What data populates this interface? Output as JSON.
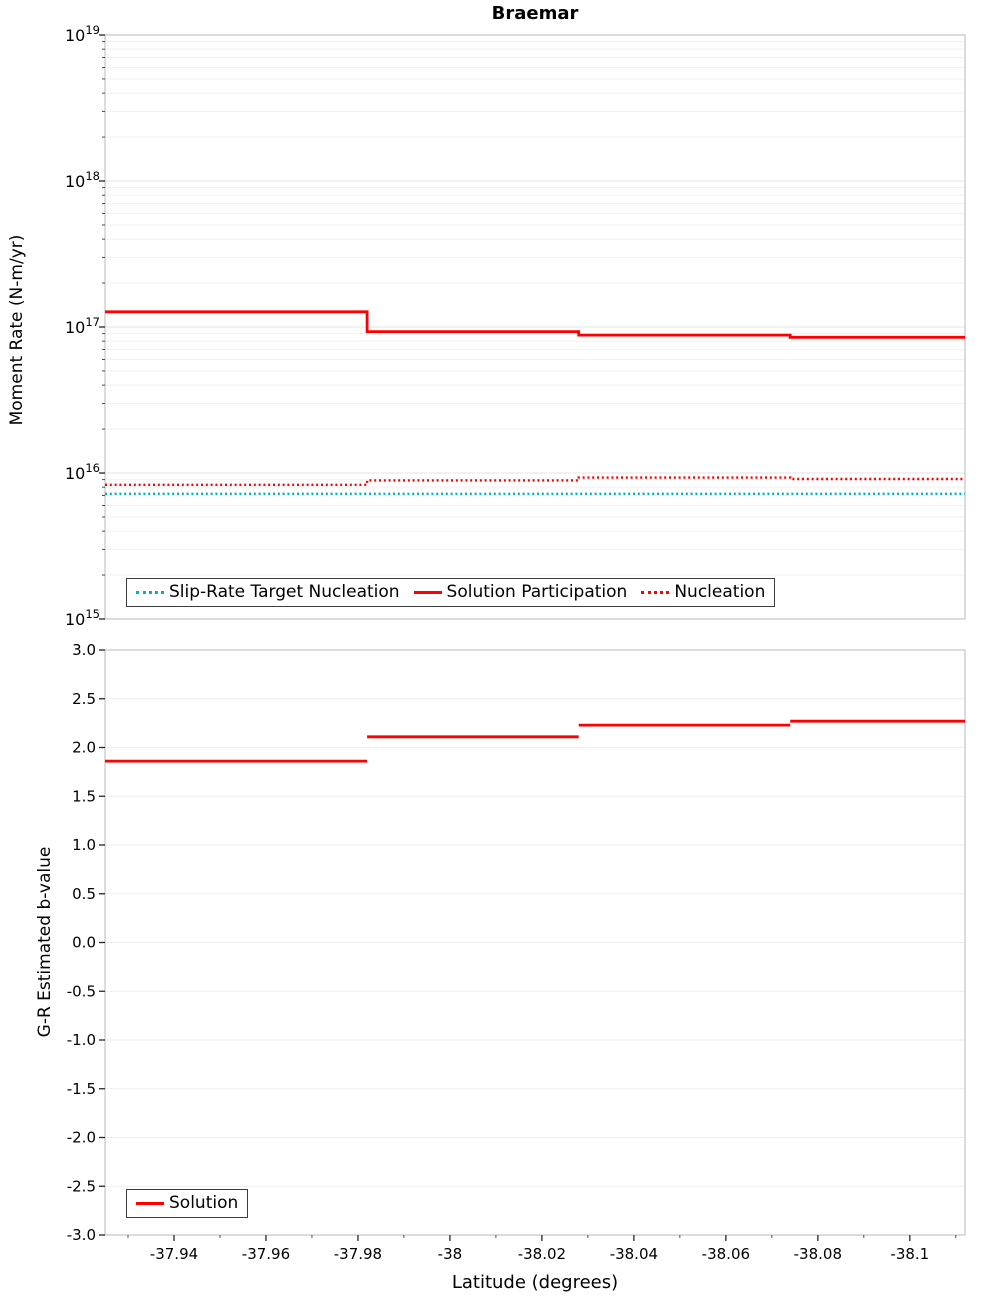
{
  "chart_data": [
    {
      "type": "line",
      "title": "Braemar",
      "ylabel": "Moment Rate (N-m/yr)",
      "yscale": "log",
      "ylim": [
        1000000000000000.0,
        1e+19
      ],
      "ytick_exponents": [
        15,
        16,
        17,
        18,
        19
      ],
      "xlim": [
        -37.925,
        -38.112
      ],
      "grid": true,
      "legend_position": "bottom-left",
      "series": [
        {
          "name": "Slip-Rate Target Nucleation",
          "color": "#00b2bd",
          "style": "dotted",
          "width": 2.4,
          "connect": true,
          "segments": [
            [
              -37.925,
              -38.112,
              7200000000000000.0
            ]
          ]
        },
        {
          "name": "Solution Participation",
          "color": "#ff0000",
          "style": "solid",
          "width": 2.8,
          "connect": true,
          "segments": [
            [
              -37.925,
              -37.982,
              1.27e+17
            ],
            [
              -37.982,
              -38.028,
              9.3e+16
            ],
            [
              -38.028,
              -38.074,
              8.8e+16
            ],
            [
              -38.074,
              -38.112,
              8.5e+16
            ]
          ]
        },
        {
          "name": "Nucleation",
          "color": "#ff0000",
          "style": "dotted",
          "width": 2.4,
          "connect": true,
          "segments": [
            [
              -37.925,
              -37.982,
              8300000000000000.0
            ],
            [
              -37.982,
              -38.028,
              8900000000000000.0
            ],
            [
              -38.028,
              -38.074,
              9300000000000000.0
            ],
            [
              -38.074,
              -38.112,
              9100000000000000.0
            ]
          ]
        }
      ]
    },
    {
      "type": "line",
      "ylabel": "G-R Estimated b-value",
      "xlabel": "Latitude (degrees)",
      "yscale": "linear",
      "ylim": [
        -3.0,
        3.0
      ],
      "ytick_values": [
        3.0,
        2.5,
        2.0,
        1.5,
        1.0,
        0.5,
        0.0,
        -0.5,
        -1.0,
        -1.5,
        -2.0,
        -2.5,
        -3.0
      ],
      "ytick_labels": [
        "3.0",
        "2.5",
        "2.0",
        "1.5",
        "1.0",
        "0.5",
        "0.0",
        "-0.5",
        "-1.0",
        "-1.5",
        "-2.0",
        "-2.5",
        "-3.0"
      ],
      "xlim": [
        -37.925,
        -38.112
      ],
      "xtick_values": [
        -37.94,
        -37.96,
        -37.98,
        -38.0,
        -38.02,
        -38.04,
        -38.06,
        -38.08,
        -38.1
      ],
      "xtick_labels": [
        "-37.94",
        "-37.96",
        "-37.98",
        "-38",
        "-38.02",
        "-38.04",
        "-38.06",
        "-38.08",
        "-38.1"
      ],
      "grid": true,
      "legend_position": "bottom-left",
      "series": [
        {
          "name": "Solution",
          "color": "#ff0000",
          "style": "solid",
          "width": 2.8,
          "connect": false,
          "segments": [
            [
              -37.925,
              -37.982,
              1.86
            ],
            [
              -37.982,
              -38.028,
              2.11
            ],
            [
              -38.028,
              -38.074,
              2.23
            ],
            [
              -38.074,
              -38.112,
              2.27
            ]
          ]
        }
      ]
    }
  ]
}
